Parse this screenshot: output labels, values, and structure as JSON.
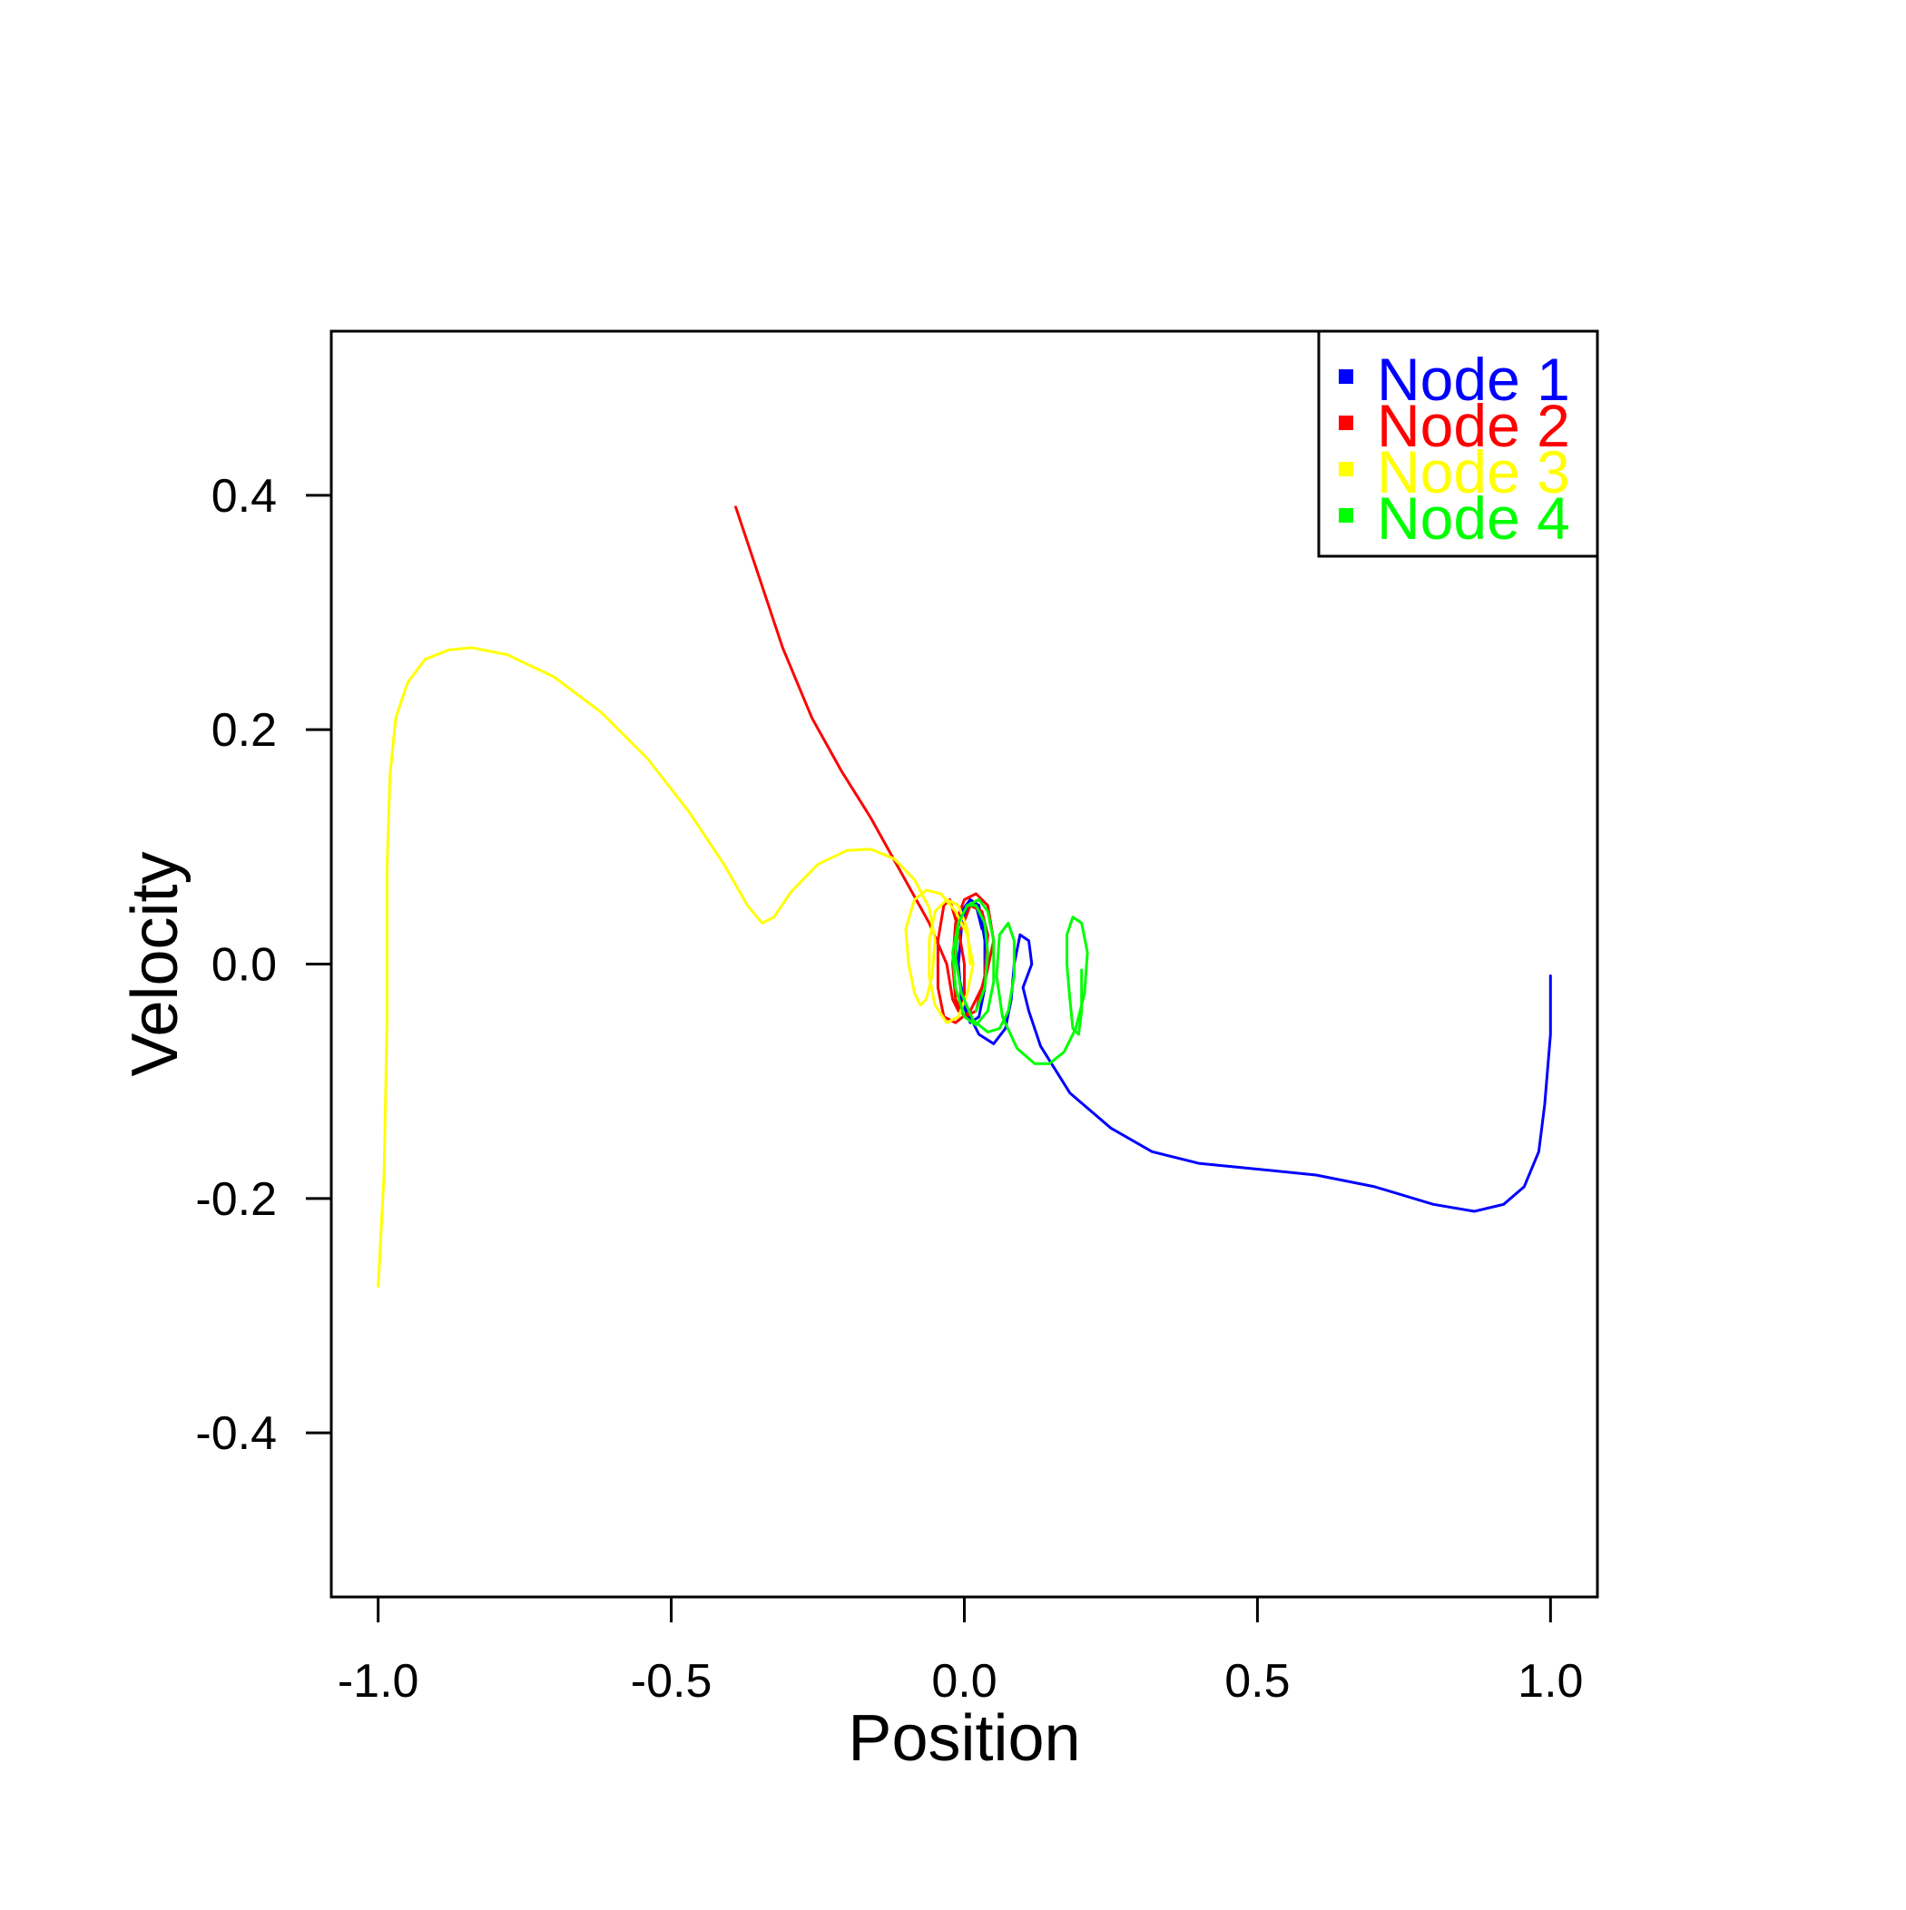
{
  "chart_data": {
    "type": "line",
    "title": "",
    "xlabel": "Position",
    "ylabel": "Velocity",
    "xlim": [
      -1.08,
      1.08
    ],
    "ylim": [
      -0.54,
      0.54
    ],
    "x_ticks": [
      -1.0,
      -0.5,
      0.0,
      0.5,
      1.0
    ],
    "x_tick_labels": [
      "-1.0",
      "-0.5",
      "0.0",
      "0.5",
      "1.0"
    ],
    "y_ticks": [
      -0.4,
      -0.2,
      0.0,
      0.2,
      0.4
    ],
    "y_tick_labels": [
      "-0.4",
      "-0.2",
      "0.0",
      "0.2",
      "0.4"
    ],
    "grid": false,
    "legend_position": "top-right",
    "series": [
      {
        "name": "Node 1",
        "color": "#0000ff",
        "points": [
          [
            1.0,
            -0.01
          ],
          [
            1.0,
            -0.06
          ],
          [
            0.99,
            -0.12
          ],
          [
            0.98,
            -0.16
          ],
          [
            0.955,
            -0.19
          ],
          [
            0.92,
            -0.205
          ],
          [
            0.87,
            -0.211
          ],
          [
            0.8,
            -0.205
          ],
          [
            0.7,
            -0.19
          ],
          [
            0.6,
            -0.18
          ],
          [
            0.5,
            -0.175
          ],
          [
            0.4,
            -0.17
          ],
          [
            0.32,
            -0.16
          ],
          [
            0.25,
            -0.14
          ],
          [
            0.18,
            -0.11
          ],
          [
            0.13,
            -0.07
          ],
          [
            0.11,
            -0.04
          ],
          [
            0.1,
            -0.02
          ],
          [
            0.115,
            0.0
          ],
          [
            0.11,
            0.02
          ],
          [
            0.095,
            0.025
          ],
          [
            0.085,
            0.0
          ],
          [
            0.08,
            -0.03
          ],
          [
            0.07,
            -0.055
          ],
          [
            0.05,
            -0.068
          ],
          [
            0.025,
            -0.06
          ],
          [
            0.005,
            -0.04
          ],
          [
            -0.01,
            -0.01
          ],
          [
            -0.015,
            0.02
          ],
          [
            -0.005,
            0.045
          ],
          [
            0.01,
            0.055
          ],
          [
            0.025,
            0.05
          ],
          [
            0.035,
            0.02
          ],
          [
            0.035,
            -0.02
          ],
          [
            0.025,
            -0.045
          ],
          [
            0.01,
            -0.05
          ],
          [
            -0.005,
            -0.03
          ],
          [
            -0.01,
            0.0
          ],
          [
            -0.005,
            0.03
          ],
          [
            0.005,
            0.05
          ],
          [
            0.02,
            0.05
          ],
          [
            0.03,
            0.03
          ]
        ]
      },
      {
        "name": "Node 2",
        "color": "#ff0000",
        "points": [
          [
            -0.39,
            0.39
          ],
          [
            -0.35,
            0.33
          ],
          [
            -0.31,
            0.27
          ],
          [
            -0.26,
            0.21
          ],
          [
            -0.21,
            0.165
          ],
          [
            -0.16,
            0.125
          ],
          [
            -0.11,
            0.08
          ],
          [
            -0.06,
            0.035
          ],
          [
            -0.03,
            0.0
          ],
          [
            -0.02,
            -0.03
          ],
          [
            -0.01,
            -0.04
          ],
          [
            0.0,
            -0.03
          ],
          [
            0.0,
            0.0
          ],
          [
            -0.01,
            0.03
          ],
          [
            -0.025,
            0.055
          ],
          [
            -0.035,
            0.05
          ],
          [
            -0.045,
            0.02
          ],
          [
            -0.045,
            -0.02
          ],
          [
            -0.035,
            -0.045
          ],
          [
            -0.015,
            -0.05
          ],
          [
            0.01,
            -0.04
          ],
          [
            0.035,
            -0.015
          ],
          [
            0.05,
            0.02
          ],
          [
            0.04,
            0.05
          ],
          [
            0.02,
            0.06
          ],
          [
            0.0,
            0.055
          ],
          [
            -0.015,
            0.035
          ],
          [
            -0.02,
            0.0
          ],
          [
            -0.015,
            -0.03
          ],
          [
            0.0,
            -0.045
          ],
          [
            0.02,
            -0.04
          ],
          [
            0.035,
            -0.01
          ],
          [
            0.04,
            0.025
          ],
          [
            0.03,
            0.045
          ],
          [
            0.01,
            0.05
          ],
          [
            -0.005,
            0.03
          ]
        ]
      },
      {
        "name": "Node 3",
        "color": "#ffff00",
        "points": [
          [
            -1.0,
            -0.275
          ],
          [
            -0.99,
            -0.18
          ],
          [
            -0.985,
            -0.05
          ],
          [
            -0.985,
            0.08
          ],
          [
            -0.98,
            0.16
          ],
          [
            -0.97,
            0.21
          ],
          [
            -0.95,
            0.24
          ],
          [
            -0.92,
            0.26
          ],
          [
            -0.88,
            0.268
          ],
          [
            -0.84,
            0.27
          ],
          [
            -0.78,
            0.264
          ],
          [
            -0.7,
            0.245
          ],
          [
            -0.62,
            0.215
          ],
          [
            -0.54,
            0.175
          ],
          [
            -0.47,
            0.13
          ],
          [
            -0.41,
            0.085
          ],
          [
            -0.37,
            0.05
          ],
          [
            -0.345,
            0.035
          ],
          [
            -0.325,
            0.04
          ],
          [
            -0.295,
            0.062
          ],
          [
            -0.25,
            0.085
          ],
          [
            -0.2,
            0.097
          ],
          [
            -0.16,
            0.098
          ],
          [
            -0.12,
            0.09
          ],
          [
            -0.085,
            0.072
          ],
          [
            -0.06,
            0.048
          ],
          [
            -0.05,
            0.02
          ],
          [
            -0.055,
            -0.01
          ],
          [
            -0.065,
            -0.03
          ],
          [
            -0.075,
            -0.035
          ],
          [
            -0.085,
            -0.025
          ],
          [
            -0.095,
            0.0
          ],
          [
            -0.1,
            0.03
          ],
          [
            -0.085,
            0.055
          ],
          [
            -0.065,
            0.063
          ],
          [
            -0.04,
            0.06
          ],
          [
            -0.015,
            0.045
          ],
          [
            0.005,
            0.025
          ],
          [
            0.015,
            0.0
          ],
          [
            0.005,
            -0.025
          ],
          [
            -0.01,
            -0.045
          ],
          [
            -0.03,
            -0.05
          ],
          [
            -0.05,
            -0.035
          ],
          [
            -0.06,
            -0.01
          ],
          [
            -0.06,
            0.02
          ],
          [
            -0.05,
            0.045
          ],
          [
            -0.03,
            0.055
          ],
          [
            -0.01,
            0.05
          ],
          [
            0.005,
            0.03
          ],
          [
            0.01,
            0.0
          ]
        ]
      },
      {
        "name": "Node 4",
        "color": "#00ff00",
        "points": [
          [
            0.2,
            -0.005
          ],
          [
            0.2,
            -0.04
          ],
          [
            0.195,
            -0.06
          ],
          [
            0.185,
            -0.055
          ],
          [
            0.18,
            -0.03
          ],
          [
            0.175,
            0.0
          ],
          [
            0.175,
            0.025
          ],
          [
            0.185,
            0.04
          ],
          [
            0.2,
            0.035
          ],
          [
            0.21,
            0.01
          ],
          [
            0.205,
            -0.025
          ],
          [
            0.19,
            -0.055
          ],
          [
            0.17,
            -0.075
          ],
          [
            0.145,
            -0.085
          ],
          [
            0.12,
            -0.085
          ],
          [
            0.09,
            -0.072
          ],
          [
            0.065,
            -0.045
          ],
          [
            0.055,
            -0.01
          ],
          [
            0.06,
            0.025
          ],
          [
            0.075,
            0.035
          ],
          [
            0.085,
            0.02
          ],
          [
            0.085,
            -0.01
          ],
          [
            0.075,
            -0.04
          ],
          [
            0.06,
            -0.055
          ],
          [
            0.04,
            -0.058
          ],
          [
            0.015,
            -0.048
          ],
          [
            -0.005,
            -0.025
          ],
          [
            -0.015,
            0.005
          ],
          [
            -0.01,
            0.035
          ],
          [
            0.005,
            0.05
          ],
          [
            0.025,
            0.055
          ],
          [
            0.04,
            0.045
          ],
          [
            0.05,
            0.02
          ],
          [
            0.05,
            -0.015
          ],
          [
            0.04,
            -0.04
          ],
          [
            0.02,
            -0.052
          ],
          [
            0.0,
            -0.045
          ],
          [
            -0.015,
            -0.02
          ],
          [
            -0.02,
            0.01
          ],
          [
            -0.01,
            0.035
          ],
          [
            0.005,
            0.05
          ],
          [
            0.02,
            0.05
          ],
          [
            0.035,
            0.035
          ],
          [
            0.04,
            0.01
          ],
          [
            0.035,
            -0.02
          ],
          [
            0.02,
            -0.04
          ]
        ]
      }
    ]
  }
}
